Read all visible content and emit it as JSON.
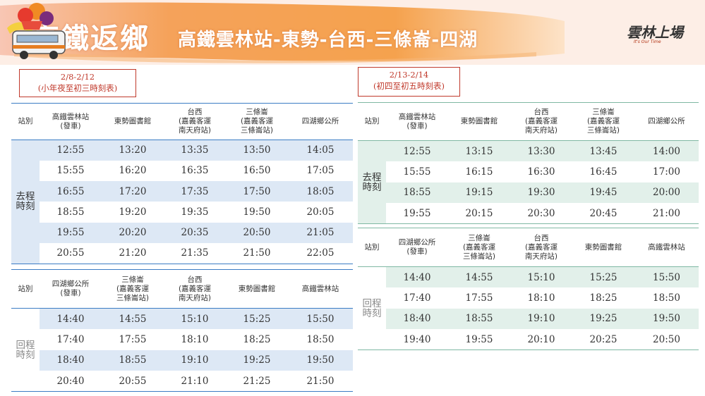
{
  "header": {
    "main_title": "高鐵返鄉",
    "route_title": "高鐵雲林站-東勢-台西-三條崙-四湖",
    "logo_text": "雲林上場",
    "logo_sub": "It's Our Time"
  },
  "left": {
    "period_dates": "2/8-2/12",
    "period_note": "(小年夜至初三時刻表)",
    "outbound": {
      "label_header": "站別",
      "headers": [
        [
          "高鐵雲林站",
          "(發車)"
        ],
        [
          "東勢圖書館"
        ],
        [
          "台西",
          "(嘉義客運",
          "南天府站)"
        ],
        [
          "三條崙",
          "(嘉義客運",
          "三條崙站)"
        ],
        [
          "四湖鄉公所"
        ]
      ],
      "side_label": [
        "去程",
        "時刻"
      ],
      "rows": [
        [
          "12:55",
          "13:20",
          "13:35",
          "13:50",
          "14:05"
        ],
        [
          "15:55",
          "16:20",
          "16:35",
          "16:50",
          "17:05"
        ],
        [
          "16:55",
          "17:20",
          "17:35",
          "17:50",
          "18:05"
        ],
        [
          "18:55",
          "19:20",
          "19:35",
          "19:50",
          "20:05"
        ],
        [
          "19:55",
          "20:20",
          "20:35",
          "20:50",
          "21:05"
        ],
        [
          "20:55",
          "21:20",
          "21:35",
          "21:50",
          "22:05"
        ]
      ]
    },
    "return": {
      "label_header": "站別",
      "headers": [
        [
          "四湖鄉公所",
          "(發車)"
        ],
        [
          "三條崙",
          "(嘉義客運",
          "三條崙站)"
        ],
        [
          "台西",
          "(嘉義客運",
          "南天府站)"
        ],
        [
          "東勢圖書館"
        ],
        [
          "高鐵雲林站"
        ]
      ],
      "side_label": [
        "回程",
        "時刻"
      ],
      "rows": [
        [
          "14:40",
          "14:55",
          "15:10",
          "15:25",
          "15:50"
        ],
        [
          "17:40",
          "17:55",
          "18:10",
          "18:25",
          "18:50"
        ],
        [
          "18:40",
          "18:55",
          "19:10",
          "19:25",
          "19:50"
        ],
        [
          "20:40",
          "20:55",
          "21:10",
          "21:25",
          "21:50"
        ]
      ]
    }
  },
  "right": {
    "period_dates": "2/13-2/14",
    "period_note": "(初四至初五時刻表)",
    "outbound": {
      "label_header": "站別",
      "headers": [
        [
          "高鐵雲林站",
          "(發車)"
        ],
        [
          "東勢圖書館"
        ],
        [
          "台西",
          "(嘉義客運",
          "南天府站)"
        ],
        [
          "三條崙",
          "(嘉義客運",
          "三條崙站)"
        ],
        [
          "四湖鄉公所"
        ]
      ],
      "side_label": [
        "去程",
        "時刻"
      ],
      "rows": [
        [
          "12:55",
          "13:15",
          "13:30",
          "13:45",
          "14:00"
        ],
        [
          "15:55",
          "16:15",
          "16:30",
          "16:45",
          "17:00"
        ],
        [
          "18:55",
          "19:15",
          "19:30",
          "19:45",
          "20:00"
        ],
        [
          "19:55",
          "20:15",
          "20:30",
          "20:45",
          "21:00"
        ]
      ]
    },
    "return": {
      "label_header": "站別",
      "headers": [
        [
          "四湖鄉公所",
          "(發車)"
        ],
        [
          "三條崙",
          "(嘉義客運",
          "三條崙站)"
        ],
        [
          "台西",
          "(嘉義客運",
          "南天府站)"
        ],
        [
          "東勢圖書館"
        ],
        [
          "高鐵雲林站"
        ]
      ],
      "side_label": [
        "回程",
        "時刻"
      ],
      "rows": [
        [
          "14:40",
          "14:55",
          "15:10",
          "15:25",
          "15:50"
        ],
        [
          "17:40",
          "17:55",
          "18:10",
          "18:25",
          "18:50"
        ],
        [
          "18:40",
          "18:55",
          "19:10",
          "19:25",
          "19:50"
        ],
        [
          "19:40",
          "19:55",
          "20:10",
          "20:25",
          "20:50"
        ]
      ]
    }
  },
  "colors": {
    "left_accent": "#3b7cc4",
    "left_shade": "#dde8f5",
    "right_accent": "#7fb8a3",
    "right_shade": "#e2f0ea",
    "period_border": "#c0392b",
    "banner_orange": "#f39a4a"
  }
}
